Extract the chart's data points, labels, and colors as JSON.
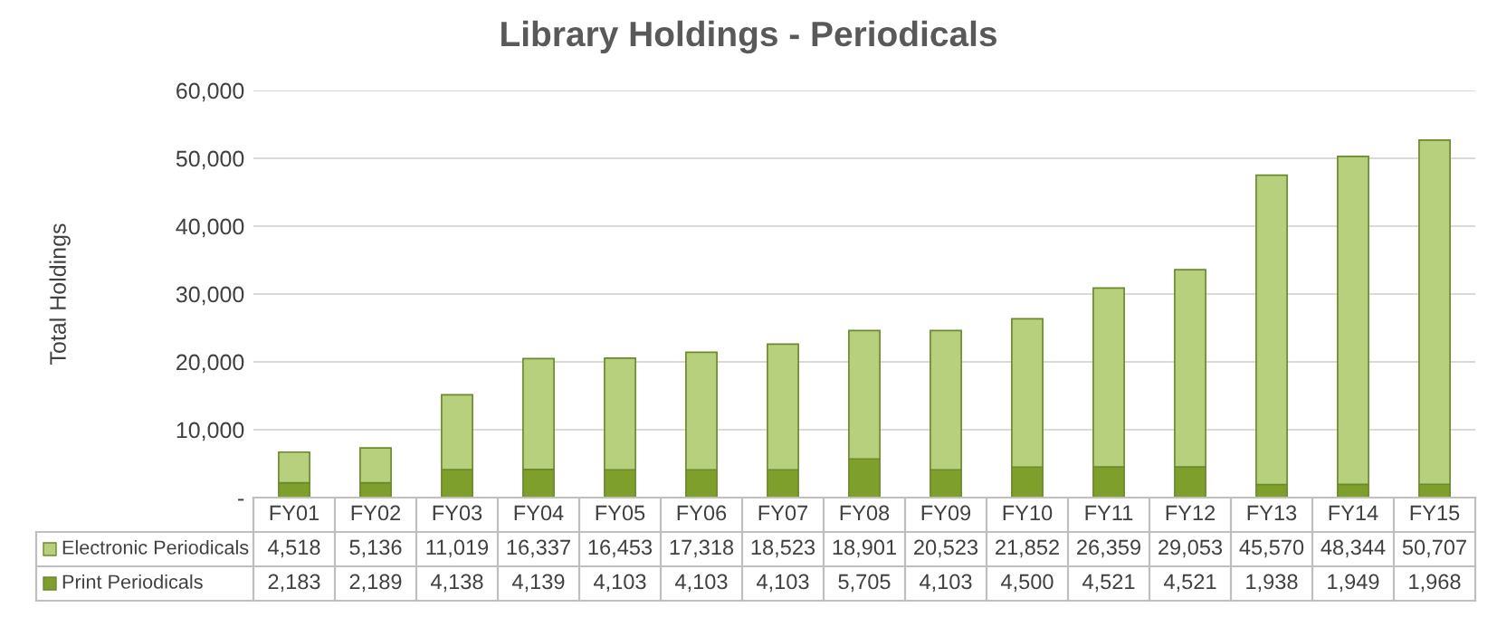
{
  "chart_data": {
    "type": "bar",
    "title": "Library Holdings - Periodicals",
    "ylabel": "Total Holdings",
    "categories": [
      "FY01",
      "FY02",
      "FY03",
      "FY04",
      "FY05",
      "FY06",
      "FY07",
      "FY08",
      "FY09",
      "FY10",
      "FY11",
      "FY12",
      "FY13",
      "FY14",
      "FY15"
    ],
    "series": [
      {
        "name": "Print Periodicals",
        "color": "#7f9f2c",
        "values": [
          2183,
          2189,
          4138,
          4139,
          4103,
          4103,
          4103,
          5705,
          4103,
          4500,
          4521,
          4521,
          1938,
          1949,
          1968
        ],
        "value_labels": [
          "2,183",
          "2,189",
          "4,138",
          "4,139",
          "4,103",
          "4,103",
          "4,103",
          "5,705",
          "4,103",
          "4,500",
          "4,521",
          "4,521",
          "1,938",
          "1,949",
          "1,968"
        ]
      },
      {
        "name": "Electronic Periodicals",
        "color": "#b7d07e",
        "values": [
          4518,
          5136,
          11019,
          16337,
          16453,
          17318,
          18523,
          18901,
          20523,
          21852,
          26359,
          29053,
          45570,
          48344,
          50707
        ],
        "value_labels": [
          "4,518",
          "5,136",
          "11,019",
          "16,337",
          "16,453",
          "17,318",
          "18,523",
          "18,901",
          "20,523",
          "21,852",
          "26,359",
          "29,053",
          "45,570",
          "48,344",
          "50,707"
        ]
      }
    ],
    "stacked": true,
    "legend": "bottom",
    "grid": "y",
    "ylim": [
      0,
      60000
    ],
    "yticks": [
      {
        "value": 0,
        "label": "-"
      },
      {
        "value": 10000,
        "label": "10,000"
      },
      {
        "value": 20000,
        "label": "20,000"
      },
      {
        "value": 30000,
        "label": "30,000"
      },
      {
        "value": 40000,
        "label": "40,000"
      },
      {
        "value": 50000,
        "label": "50,000"
      },
      {
        "value": 60000,
        "label": "60,000"
      }
    ]
  }
}
